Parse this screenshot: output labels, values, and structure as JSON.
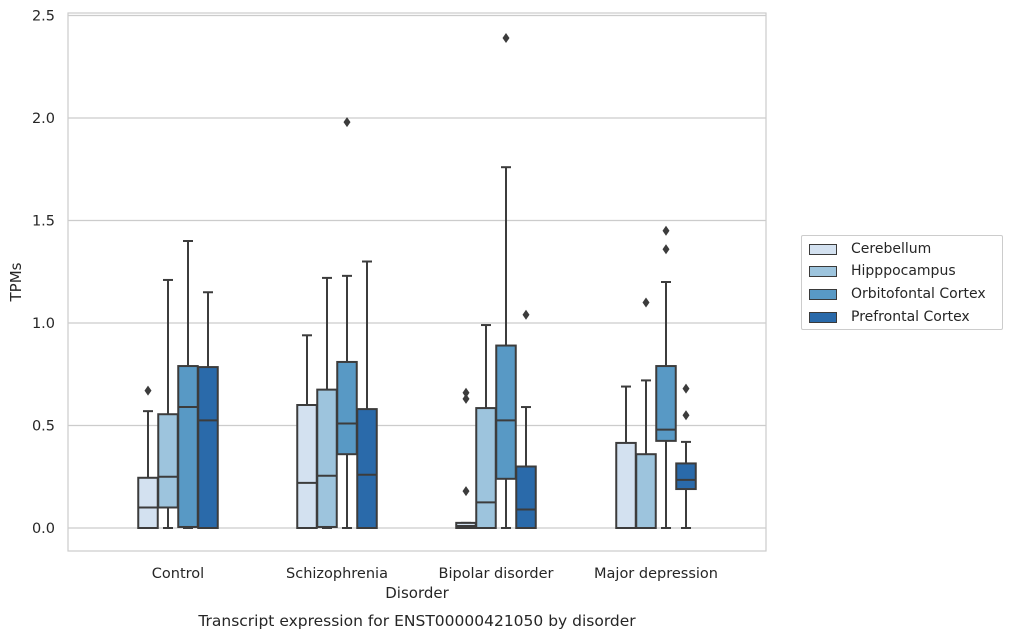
{
  "chart_data": {
    "type": "box",
    "title": "Transcript expression for ENST00000421050 by disorder",
    "xlabel": "Disorder",
    "ylabel": "TPMs",
    "ylim": [
      -0.11,
      2.52
    ],
    "yticks": [
      "0.0",
      "0.5",
      "1.0",
      "1.5",
      "2.0",
      "2.5"
    ],
    "grid": "horizontal",
    "legend_position": "right",
    "categories": [
      "Control",
      "Schizophrenia",
      "Bipolar disorder",
      "Major depression"
    ],
    "series": [
      {
        "name": "Cerebellum",
        "color": "#d3e1f0",
        "boxes": [
          {
            "min": 0.0,
            "q1": 0.0,
            "median": 0.1,
            "q3": 0.245,
            "max": 0.57,
            "outliers": [
              0.67
            ]
          },
          {
            "min": 0.0,
            "q1": 0.0,
            "median": 0.22,
            "q3": 0.6,
            "max": 0.94,
            "outliers": []
          },
          {
            "min": 0.0,
            "q1": 0.0,
            "median": 0.01,
            "q3": 0.025,
            "max": 0.025,
            "outliers": [
              0.18,
              0.63,
              0.66
            ]
          },
          {
            "min": 0.0,
            "q1": 0.0,
            "median": 0.0,
            "q3": 0.415,
            "max": 0.69,
            "outliers": []
          }
        ]
      },
      {
        "name": "Hipppocampus",
        "color": "#9dc4dd",
        "boxes": [
          {
            "min": 0.0,
            "q1": 0.1,
            "median": 0.25,
            "q3": 0.555,
            "max": 1.21,
            "outliers": []
          },
          {
            "min": 0.0,
            "q1": 0.005,
            "median": 0.255,
            "q3": 0.675,
            "max": 1.22,
            "outliers": []
          },
          {
            "min": 0.0,
            "q1": 0.0,
            "median": 0.125,
            "q3": 0.585,
            "max": 0.99,
            "outliers": []
          },
          {
            "min": 0.0,
            "q1": 0.0,
            "median": 0.0,
            "q3": 0.36,
            "max": 0.72,
            "outliers": [
              1.1
            ]
          }
        ]
      },
      {
        "name": "Orbitofontal Cortex",
        "color": "#5899c5",
        "boxes": [
          {
            "min": 0.0,
            "q1": 0.005,
            "median": 0.59,
            "q3": 0.79,
            "max": 1.4,
            "outliers": []
          },
          {
            "min": 0.0,
            "q1": 0.36,
            "median": 0.51,
            "q3": 0.81,
            "max": 1.23,
            "outliers": [
              1.98
            ]
          },
          {
            "min": 0.0,
            "q1": 0.24,
            "median": 0.525,
            "q3": 0.89,
            "max": 1.76,
            "outliers": [
              2.39
            ]
          },
          {
            "min": 0.0,
            "q1": 0.425,
            "median": 0.48,
            "q3": 0.79,
            "max": 1.2,
            "outliers": [
              1.36,
              1.45
            ]
          }
        ]
      },
      {
        "name": "Prefrontal Cortex",
        "color": "#2a6aaa",
        "boxes": [
          {
            "min": 0.0,
            "q1": 0.0,
            "median": 0.525,
            "q3": 0.785,
            "max": 1.15,
            "outliers": []
          },
          {
            "min": 0.0,
            "q1": 0.0,
            "median": 0.26,
            "q3": 0.58,
            "max": 1.3,
            "outliers": []
          },
          {
            "min": 0.0,
            "q1": 0.0,
            "median": 0.09,
            "q3": 0.3,
            "max": 0.59,
            "outliers": [
              1.04
            ]
          },
          {
            "min": 0.0,
            "q1": 0.19,
            "median": 0.235,
            "q3": 0.315,
            "max": 0.42,
            "outliers": [
              0.55,
              0.68
            ]
          }
        ]
      }
    ]
  }
}
